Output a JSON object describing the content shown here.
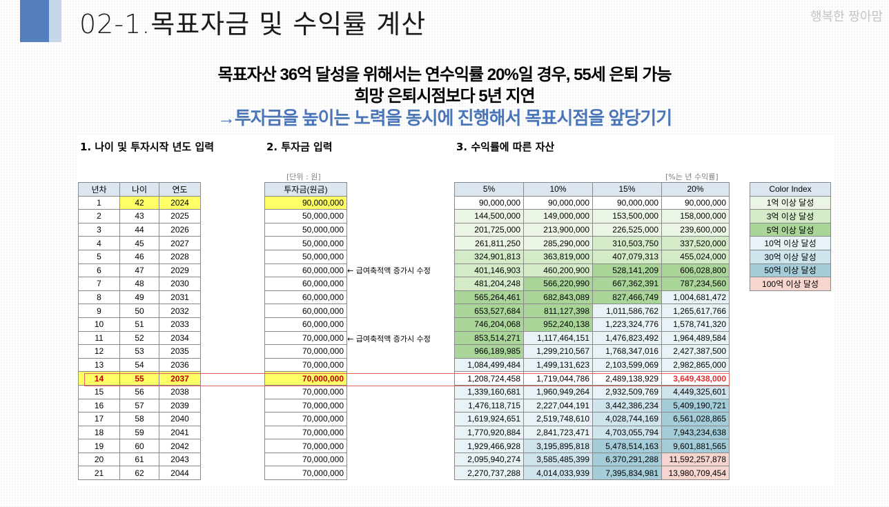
{
  "slide": {
    "title": "02-1.목표자금 및 수익률 계산",
    "brand": "행복한 짱아맘",
    "headline1": "목표자산 36억 달성을 위해서는 연수익률 20%일 경우, 55세 은퇴 가능",
    "headline2": "희망 은퇴시점보다 5년 지연",
    "headline3": "→투자금을 높이는 노력을 동시에  진행해서 목표시점을 앞당기기"
  },
  "colors": {
    "accent": "#5380bd",
    "headline_blue": "#4a76b8",
    "input_yellow": "#ffff66",
    "highlight_red": "#e03030"
  },
  "sheet": {
    "section1": "1. 나이 및 투자시작 년도 입력",
    "section2": "2. 투자금 입력",
    "section3": "3. 수익률에 따른 자산",
    "unit_note": "[단위 : 원]",
    "rate_note": "[%는 년 수익률]",
    "headers_a": [
      "년차",
      "나이",
      "연도"
    ],
    "header_b": "투자금(원금)",
    "headers_r": [
      "5%",
      "10%",
      "15%",
      "20%"
    ],
    "annotation": "← 급여축적액 증가시 수정",
    "color_index_title": "Color Index",
    "color_index": [
      "1억 이상 달성",
      "3억 이상 달성",
      "5억 이상 달성",
      "10억 이상 달성",
      "30억 이상 달성",
      "50억 이상 달성",
      "100억 이상 달성"
    ],
    "rows": [
      {
        "y": "1",
        "age": "42",
        "year": "2024",
        "inv": "90,000,000",
        "r": [
          "90,000,000",
          "90,000,000",
          "90,000,000",
          "90,000,000"
        ]
      },
      {
        "y": "2",
        "age": "43",
        "year": "2025",
        "inv": "50,000,000",
        "r": [
          "144,500,000",
          "149,000,000",
          "153,500,000",
          "158,000,000"
        ]
      },
      {
        "y": "3",
        "age": "44",
        "year": "2026",
        "inv": "50,000,000",
        "r": [
          "201,725,000",
          "213,900,000",
          "226,525,000",
          "239,600,000"
        ]
      },
      {
        "y": "4",
        "age": "45",
        "year": "2027",
        "inv": "50,000,000",
        "r": [
          "261,811,250",
          "285,290,000",
          "310,503,750",
          "337,520,000"
        ]
      },
      {
        "y": "5",
        "age": "46",
        "year": "2028",
        "inv": "50,000,000",
        "r": [
          "324,901,813",
          "363,819,000",
          "407,079,313",
          "455,024,000"
        ]
      },
      {
        "y": "6",
        "age": "47",
        "year": "2029",
        "inv": "60,000,000",
        "r": [
          "401,146,903",
          "460,200,900",
          "528,141,209",
          "606,028,800"
        ]
      },
      {
        "y": "7",
        "age": "48",
        "year": "2030",
        "inv": "60,000,000",
        "r": [
          "481,204,248",
          "566,220,990",
          "667,362,391",
          "787,234,560"
        ]
      },
      {
        "y": "8",
        "age": "49",
        "year": "2031",
        "inv": "60,000,000",
        "r": [
          "565,264,461",
          "682,843,089",
          "827,466,749",
          "1,004,681,472"
        ]
      },
      {
        "y": "9",
        "age": "50",
        "year": "2032",
        "inv": "60,000,000",
        "r": [
          "653,527,684",
          "811,127,398",
          "1,011,586,762",
          "1,265,617,766"
        ]
      },
      {
        "y": "10",
        "age": "51",
        "year": "2033",
        "inv": "60,000,000",
        "r": [
          "746,204,068",
          "952,240,138",
          "1,223,324,776",
          "1,578,741,320"
        ]
      },
      {
        "y": "11",
        "age": "52",
        "year": "2034",
        "inv": "70,000,000",
        "r": [
          "853,514,271",
          "1,117,464,151",
          "1,476,823,492",
          "1,964,489,584"
        ]
      },
      {
        "y": "12",
        "age": "53",
        "year": "2035",
        "inv": "70,000,000",
        "r": [
          "966,189,985",
          "1,299,210,567",
          "1,768,347,016",
          "2,427,387,500"
        ]
      },
      {
        "y": "13",
        "age": "54",
        "year": "2036",
        "inv": "70,000,000",
        "r": [
          "1,084,499,484",
          "1,499,131,623",
          "2,103,599,069",
          "2,982,865,000"
        ]
      },
      {
        "y": "14",
        "age": "55",
        "year": "2037",
        "inv": "70,000,000",
        "r": [
          "1,208,724,458",
          "1,719,044,786",
          "2,489,138,929",
          "3,649,438,000"
        ]
      },
      {
        "y": "15",
        "age": "56",
        "year": "2038",
        "inv": "70,000,000",
        "r": [
          "1,339,160,681",
          "1,960,949,264",
          "2,932,509,769",
          "4,449,325,601"
        ]
      },
      {
        "y": "16",
        "age": "57",
        "year": "2039",
        "inv": "70,000,000",
        "r": [
          "1,476,118,715",
          "2,227,044,191",
          "3,442,386,234",
          "5,409,190,721"
        ]
      },
      {
        "y": "17",
        "age": "58",
        "year": "2040",
        "inv": "70,000,000",
        "r": [
          "1,619,924,651",
          "2,519,748,610",
          "4,028,744,169",
          "6,561,028,865"
        ]
      },
      {
        "y": "18",
        "age": "59",
        "year": "2041",
        "inv": "70,000,000",
        "r": [
          "1,770,920,884",
          "2,841,723,471",
          "4,703,055,794",
          "7,943,234,638"
        ]
      },
      {
        "y": "19",
        "age": "60",
        "year": "2042",
        "inv": "70,000,000",
        "r": [
          "1,929,466,928",
          "3,195,895,818",
          "5,478,514,163",
          "9,601,881,565"
        ]
      },
      {
        "y": "20",
        "age": "61",
        "year": "2043",
        "inv": "70,000,000",
        "r": [
          "2,095,940,274",
          "3,585,485,399",
          "6,370,291,288",
          "11,592,257,878"
        ]
      },
      {
        "y": "21",
        "age": "62",
        "year": "2044",
        "inv": "70,000,000",
        "r": [
          "2,270,737,288",
          "4,014,033,939",
          "7,395,834,981",
          "13,980,709,454"
        ]
      }
    ]
  }
}
